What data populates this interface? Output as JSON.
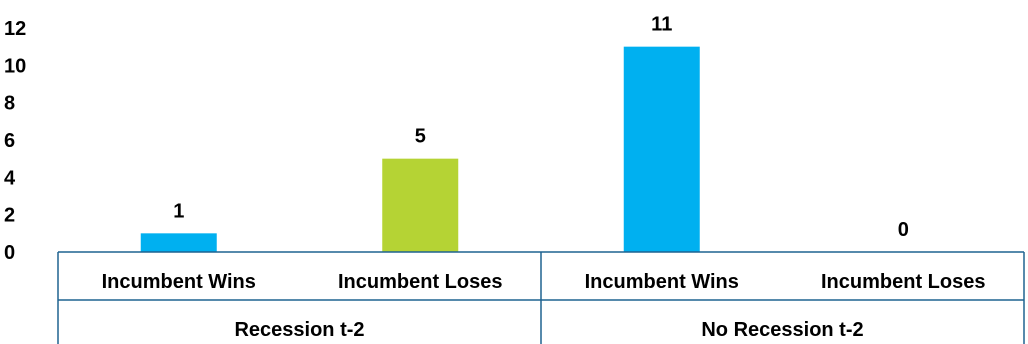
{
  "chart_data": {
    "type": "bar",
    "groups": [
      {
        "label": "Recession t-2",
        "categories": [
          "Incumbent Wins",
          "Incumbent Loses"
        ]
      },
      {
        "label": "No Recession t-2",
        "categories": [
          "Incumbent Wins",
          "Incumbent Loses"
        ]
      }
    ],
    "values": [
      1,
      5,
      11,
      0
    ],
    "colors": [
      "#00B0F0",
      "#B5D334",
      "#00B0F0",
      "#B5D334"
    ],
    "data_labels": [
      "1",
      "5",
      "11",
      "0"
    ],
    "y_ticks": [
      "0",
      "2",
      "4",
      "6",
      "8",
      "10",
      "12"
    ],
    "ylim": [
      0,
      12
    ],
    "axis_color": "#1F6391",
    "title": "",
    "xlabel": "",
    "ylabel": "",
    "grid": false,
    "legend": "none"
  }
}
